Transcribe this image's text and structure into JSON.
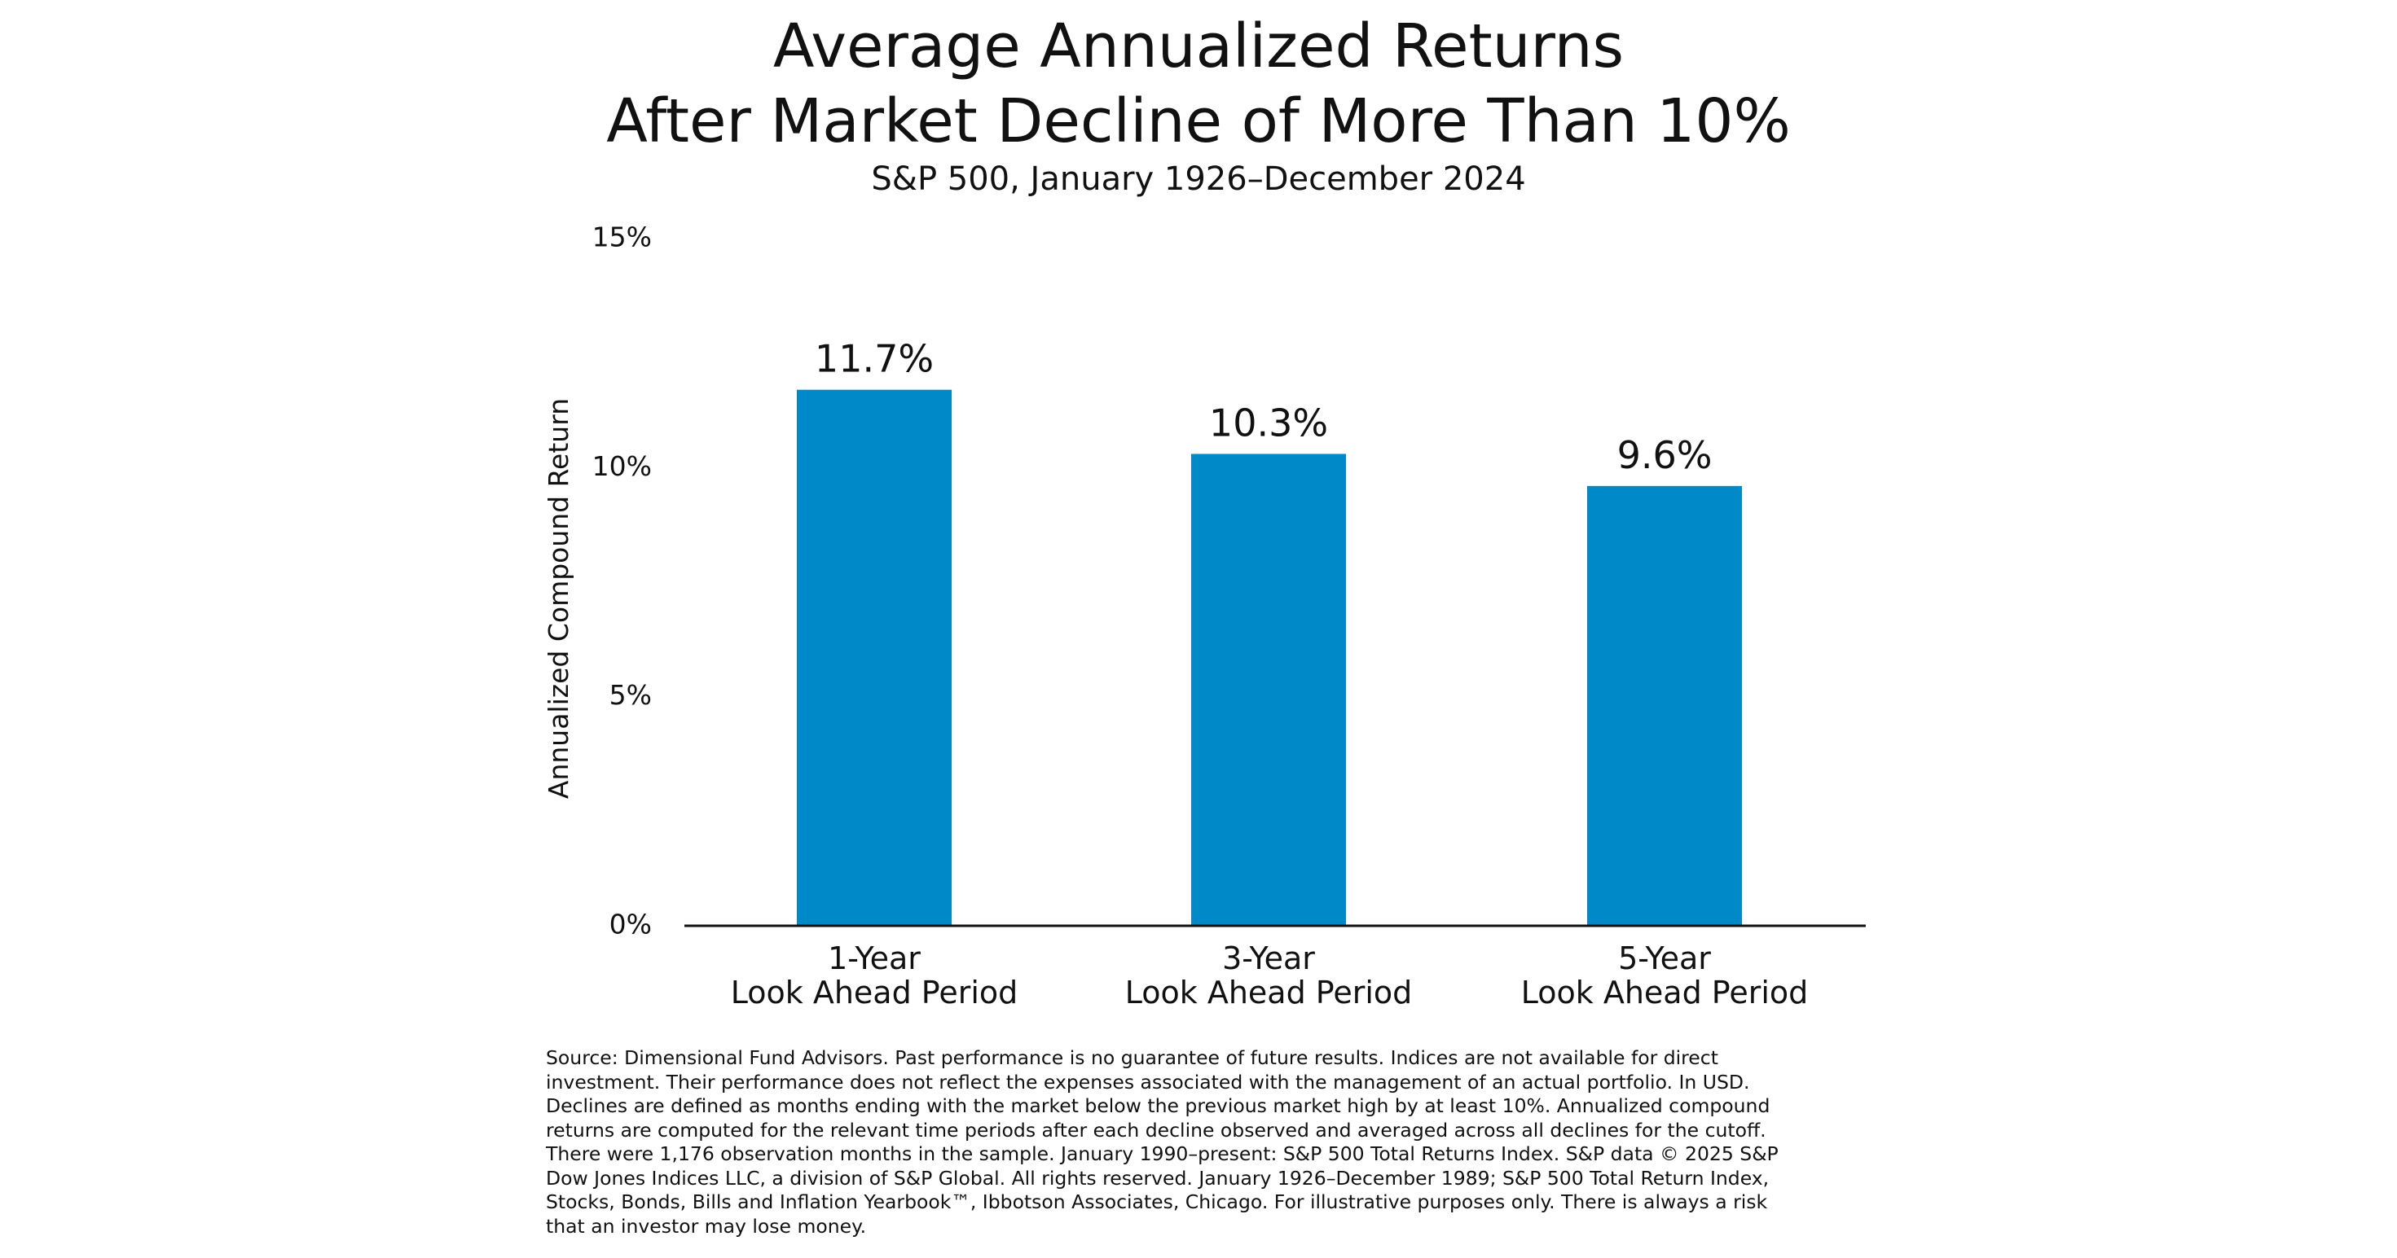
{
  "header": {
    "title_line1": "Average Annualized Returns",
    "title_line2": "After Market Decline of More Than 10%",
    "subtitle": "S&P 500, January 1926–December 2024"
  },
  "colors": {
    "bar": "#0089C8",
    "axis": "#111111",
    "text": "#111111",
    "background": "#FFFFFF"
  },
  "chart_data": {
    "type": "bar",
    "title": "Average Annualized Returns After Market Decline of More Than 10%",
    "subtitle": "S&P 500, January 1926–December 2024",
    "xlabel": "",
    "ylabel": "Annualized Compound Return",
    "categories": [
      [
        "1-Year",
        "Look Ahead Period"
      ],
      [
        "3-Year",
        "Look Ahead Period"
      ],
      [
        "5-Year",
        "Look Ahead Period"
      ]
    ],
    "values": [
      11.7,
      10.3,
      9.6
    ],
    "data_labels": [
      "11.7%",
      "10.3%",
      "9.6%"
    ],
    "ylim": [
      0,
      15
    ],
    "y_ticks": [
      0,
      5,
      10,
      15
    ],
    "y_tick_labels": [
      "0%",
      "5%",
      "10%",
      "15%"
    ],
    "grid": false,
    "legend": "none"
  },
  "footnote": "Source: Dimensional Fund Advisors. Past performance is no guarantee of future results. Indices are not available for direct\ninvestment. Their performance does not reflect the expenses associated with the management of an actual portfolio. In USD.\nDeclines are defined as months ending with the market below the previous market high by at least 10%. Annualized compound\nreturns are computed for the relevant time periods after each decline observed and averaged across all declines for the cutoff.\nThere were 1,176 observation months in the sample. January 1990–present: S&P 500 Total Returns Index. S&P data © 2025 S&P\nDow Jones Indices LLC, a division of S&P Global. All rights reserved. January 1926–December 1989; S&P 500 Total Return Index,\nStocks, Bonds, Bills and Inflation Yearbook™, Ibbotson Associates, Chicago. For illustrative purposes only. There is always a risk\nthat an investor may lose money."
}
